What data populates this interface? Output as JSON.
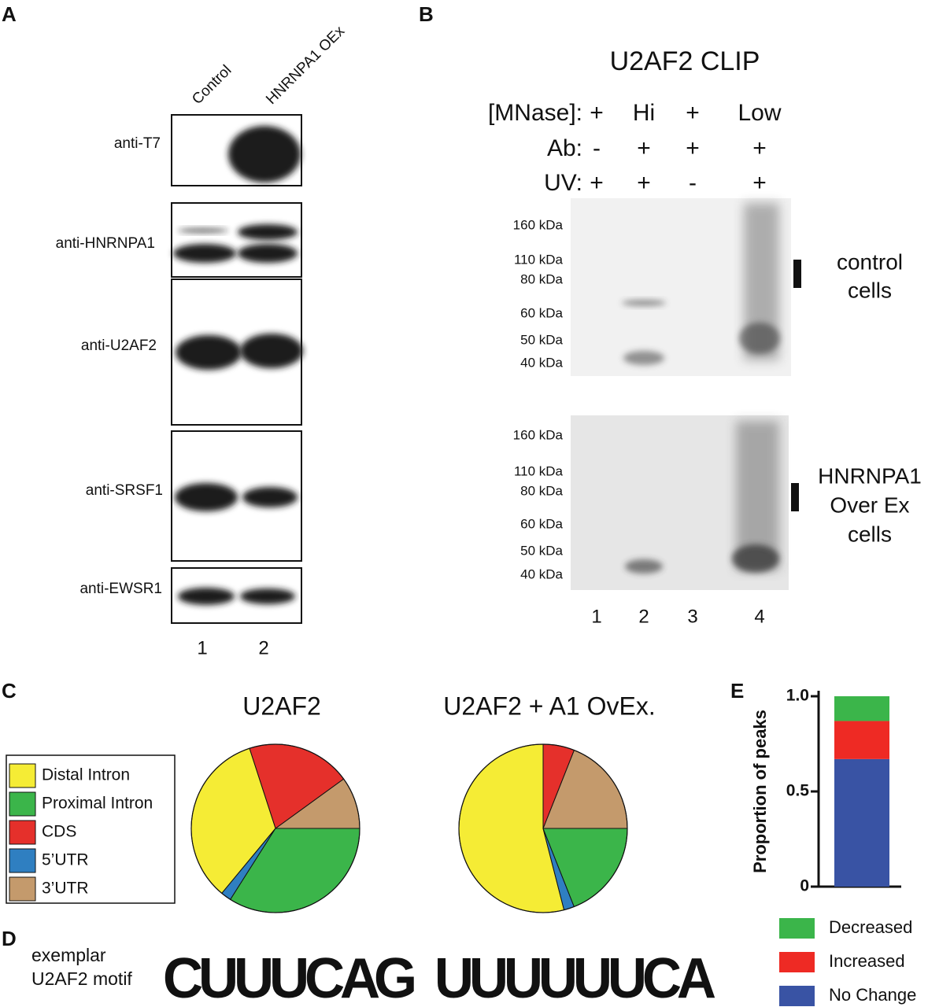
{
  "panel_labels": [
    "A",
    "B",
    "C",
    "D",
    "E"
  ],
  "blot_a": {
    "lanes": [
      "Control",
      "HNRNPA1 OEx"
    ],
    "antibodies": [
      "anti-T7",
      "anti-HNRNPA1",
      "anti-U2AF2",
      "anti-SRSF1",
      "anti-EWSR1"
    ],
    "lane_numbers": [
      "1",
      "2"
    ]
  },
  "blot_b": {
    "title": "U2AF2 CLIP",
    "condition_labels": [
      "[MNase]:",
      "Ab:",
      "UV:"
    ],
    "conditions": [
      [
        "+",
        "Hi",
        "+",
        "Low"
      ],
      [
        "-",
        "+",
        "+",
        "+"
      ],
      [
        "+",
        "+",
        "-",
        "+"
      ]
    ],
    "markers": [
      "160 kDa",
      "110 kDa",
      "80 kDa",
      "60 kDa",
      "50 kDa",
      "40 kDa"
    ],
    "groups": [
      [
        "control",
        "cells"
      ],
      [
        "HNRNPA1",
        "Over Ex",
        "cells"
      ]
    ],
    "lane_numbers": [
      "1",
      "2",
      "3",
      "4"
    ]
  },
  "chart_data": [
    {
      "type": "pie",
      "title": "U2AF2",
      "categories": [
        "Distal Intron",
        "Proximal Intron",
        "CDS",
        "5’UTR",
        "3’UTR"
      ],
      "values": [
        34,
        34,
        20,
        2,
        10
      ],
      "colors": [
        "#f5ec35",
        "#3bb54a",
        "#e5302b",
        "#2f7fc1",
        "#c49a6c"
      ]
    },
    {
      "type": "pie",
      "title": "U2AF2 + A1 OvEx.",
      "values": [
        54,
        19,
        6,
        2,
        19
      ],
      "colors": [
        "#f5ec35",
        "#3bb54a",
        "#e5302b",
        "#2f7fc1",
        "#c49a6c"
      ]
    },
    {
      "type": "bar",
      "stacked": true,
      "ylabel": "Proportion of peaks",
      "categories": [
        null
      ],
      "ylim": [
        0,
        1
      ],
      "yticks": [
        0,
        0.5,
        {
          "value": 1,
          "label": "1.0"
        }
      ],
      "series": [
        {
          "name": "No Change",
          "color": "#3953a4",
          "values": [
            0.67
          ]
        },
        {
          "name": "Increased",
          "color": "#ee2a24",
          "values": [
            0.2
          ]
        },
        {
          "name": "Decreased",
          "color": "#3bb54a",
          "values": [
            0.13
          ]
        }
      ]
    }
  ],
  "motif": {
    "label": [
      "exemplar",
      "U2AF2 motif"
    ],
    "logo_1": [
      "C",
      "U",
      "U",
      "U",
      "C",
      "A",
      "G"
    ],
    "logo_2": [
      "U",
      "U",
      "U",
      "U",
      "U",
      "U",
      "C",
      "A"
    ],
    "letter_colors": {
      "A": "#3bb54a",
      "C": "#2b6cb0",
      "G": "#f6a51b",
      "U": "#d7262b"
    }
  }
}
